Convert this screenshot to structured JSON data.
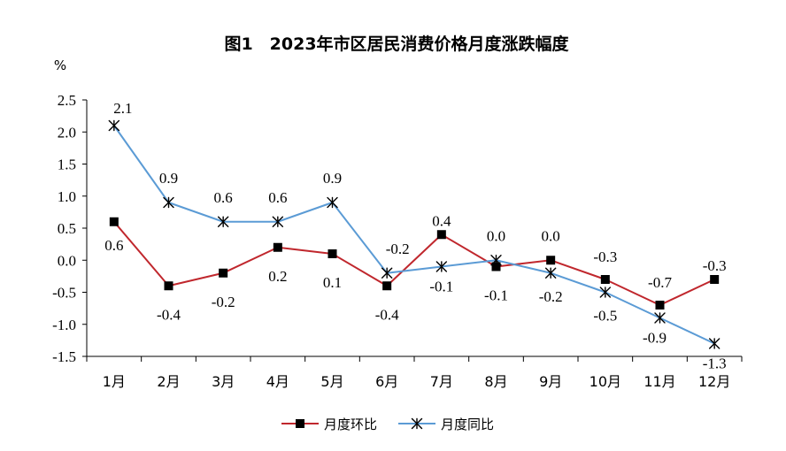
{
  "chart_data": {
    "type": "line",
    "title": "图1　2023年市区居民消费价格月度涨跌幅度",
    "ylabel": "%",
    "xlabel": "",
    "categories": [
      "1月",
      "2月",
      "3月",
      "4月",
      "5月",
      "6月",
      "7月",
      "8月",
      "9月",
      "10月",
      "11月",
      "12月"
    ],
    "ylim": [
      -1.5,
      2.5
    ],
    "yticks": [
      "2.5",
      "2.0",
      "1.5",
      "1.0",
      "0.5",
      "0.0",
      "-0.5",
      "-1.0",
      "-1.5"
    ],
    "ytick_values": [
      2.5,
      2.0,
      1.5,
      1.0,
      0.5,
      0.0,
      -0.5,
      -1.0,
      -1.5
    ],
    "grid": false,
    "legend_position": "bottom",
    "series": [
      {
        "name": "月度环比",
        "color": "#C0272D",
        "marker": "square",
        "values": [
          0.6,
          -0.4,
          -0.2,
          0.2,
          0.1,
          -0.4,
          0.4,
          -0.1,
          0.0,
          -0.3,
          -0.7,
          -0.3
        ],
        "labels": [
          "0.6",
          "-0.4",
          "-0.2",
          "0.2",
          "0.1",
          "-0.4",
          "0.4",
          "-0.1",
          "0.0",
          "-0.3",
          "-0.7",
          "-0.3"
        ]
      },
      {
        "name": "月度同比",
        "color": "#5B9BD5",
        "marker": "star",
        "values": [
          2.1,
          0.9,
          0.6,
          0.6,
          0.9,
          -0.2,
          -0.1,
          0.0,
          -0.2,
          -0.5,
          -0.9,
          -1.3
        ],
        "labels": [
          "2.1",
          "0.9",
          "0.6",
          "0.6",
          "0.9",
          "-0.2",
          "-0.1",
          "0.0",
          "-0.2",
          "-0.5",
          "-0.9",
          "-1.3"
        ]
      }
    ]
  }
}
